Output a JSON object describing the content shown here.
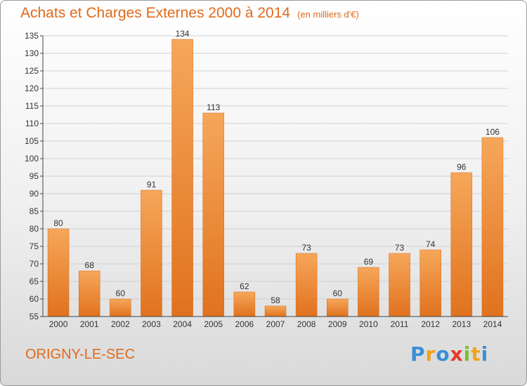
{
  "header": {
    "title": "Achats et Charges Externes 2000 à 2014",
    "subtitle": "(en milliers d'€)"
  },
  "footer": {
    "town": "ORIGNY-LE-SEC",
    "logo": {
      "letters": [
        "P",
        "r",
        "o",
        "x",
        "i",
        "t",
        "i"
      ],
      "colors": [
        "#3a8fd6",
        "#f2a31b",
        "#3a8fd6",
        "#e8382c",
        "#7cbf2c",
        "#f2a31b",
        "#3a8fd6"
      ]
    }
  },
  "colors": {
    "bar_light": "#f6a75a",
    "bar_dark": "#e0721e",
    "label": "#333333",
    "grid": "#d0d0d0",
    "accent": "#e06a1c"
  },
  "chart_data": {
    "type": "bar",
    "categories": [
      "2000",
      "2001",
      "2002",
      "2003",
      "2004",
      "2005",
      "2006",
      "2007",
      "2008",
      "2009",
      "2010",
      "2011",
      "2012",
      "2013",
      "2014"
    ],
    "values": [
      80,
      68,
      60,
      91,
      134,
      113,
      62,
      58,
      73,
      60,
      69,
      73,
      74,
      96,
      106
    ],
    "ylim": [
      55,
      135
    ],
    "yticks": [
      55,
      60,
      65,
      70,
      75,
      80,
      85,
      90,
      95,
      100,
      105,
      110,
      115,
      120,
      125,
      130,
      135
    ],
    "grid": "horizontal",
    "data_labels": true
  }
}
